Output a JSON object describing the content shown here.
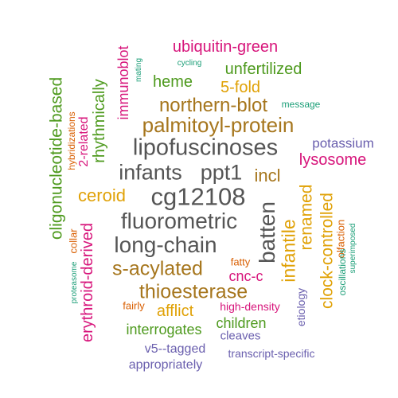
{
  "colors": {
    "green": "#4e9a1e",
    "orange": "#d95f02",
    "gold": "#e0a106",
    "magenta": "#d7157b",
    "purple": "#6a5fae",
    "teal": "#1b9e77",
    "gray": "#555555",
    "brown": "#a6761d"
  },
  "words": {
    "ubiquitin_green": "ubiquitin-green",
    "immunoblot": "immunoblot",
    "mating": "mating",
    "cycling": "cycling",
    "unfertilized": "unfertilized",
    "heme": "heme",
    "five_fold": "5-fold",
    "oligonucleotide_based": "oligonucleotide-based",
    "rhythmically": "rhythmically",
    "northern_blot": "northern-blot",
    "message": "message",
    "hybridizations": "hybridizations",
    "two_related": "2-related",
    "palmitoyl_protein": "palmitoyl-protein",
    "lipofuscinoses": "lipofuscinoses",
    "potassium": "potassium",
    "lysosome": "lysosome",
    "infants": "infants",
    "ppt1": "ppt1",
    "incl": "incl",
    "ceroid": "ceroid",
    "cg12108": "cg12108",
    "renamed": "renamed",
    "clock_controlled": "clock-controlled",
    "etiology": "etiology",
    "olfaction": "olfaction",
    "superimposed": "superimposed",
    "oscillations": "oscillations",
    "fluorometric": "fluorometric",
    "batten": "batten",
    "infantile": "infantile",
    "collar": "collar",
    "erythroid_derived": "erythroid-derived",
    "proteasome": "proteasome",
    "long_chain": "long-chain",
    "s_acylated": "s-acylated",
    "fatty": "fatty",
    "cnc_c": "cnc-c",
    "thioesterase": "thioesterase",
    "afflict": "afflict",
    "fairly": "fairly",
    "high_density": "high-density",
    "interrogates": "interrogates",
    "children": "children",
    "cleaves": "cleaves",
    "v5_tagged": "v5--tagged",
    "transcript_specific": "transcript-specific",
    "appropriately": "appropriately"
  }
}
